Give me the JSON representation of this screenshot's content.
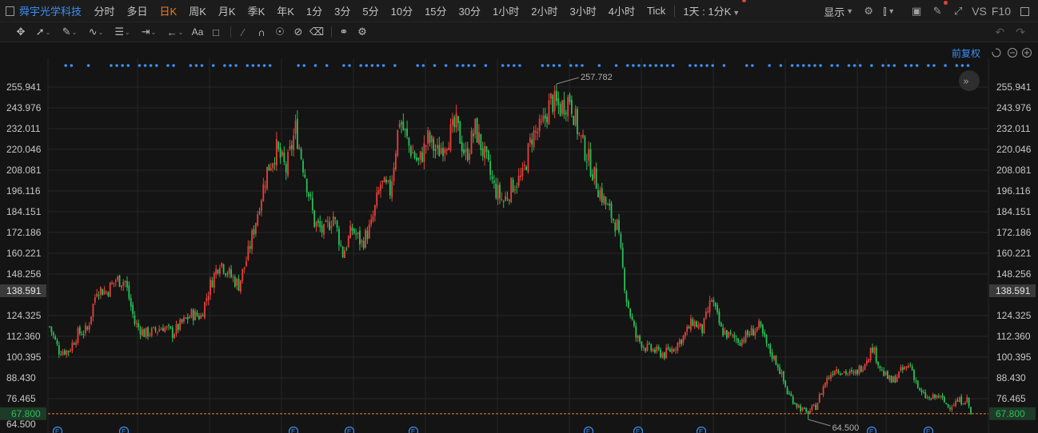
{
  "topbar": {
    "stock_name": "舜宇光学科技",
    "tabs": [
      {
        "label": "分时",
        "active": false
      },
      {
        "label": "多日",
        "active": false
      },
      {
        "label": "日K",
        "active": true
      },
      {
        "label": "周K",
        "active": false
      },
      {
        "label": "月K",
        "active": false
      },
      {
        "label": "季K",
        "active": false
      },
      {
        "label": "年K",
        "active": false
      },
      {
        "label": "1分",
        "active": false
      },
      {
        "label": "3分",
        "active": false
      },
      {
        "label": "5分",
        "active": false
      },
      {
        "label": "10分",
        "active": false
      },
      {
        "label": "15分",
        "active": false
      },
      {
        "label": "30分",
        "active": false
      },
      {
        "label": "1小时",
        "active": false
      },
      {
        "label": "2小时",
        "active": false
      },
      {
        "label": "3小时",
        "active": false
      },
      {
        "label": "4小时",
        "active": false
      },
      {
        "label": "Tick",
        "active": false
      }
    ],
    "period_select": "1天 : 1分K",
    "display_label": "显示",
    "vs_label": "VS",
    "f10_label": "F10"
  },
  "toolbar": {
    "icons": [
      "move-icon",
      "line-icon",
      "channel-icon",
      "wave-icon",
      "fib-icon",
      "range-icon",
      "arrow-icon",
      "text-icon",
      "note-icon",
      "eraser-icon",
      "magnet-icon",
      "eye-icon",
      "hide-icon",
      "trash-icon",
      "link-icon",
      "settings-icon"
    ]
  },
  "chart_data": {
    "type": "candlestick",
    "adjust_label": "前复权",
    "y_ticks": [
      255.941,
      243.976,
      232.011,
      220.046,
      208.081,
      196.116,
      184.151,
      172.186,
      160.221,
      148.256,
      124.325,
      112.36,
      100.395,
      88.43,
      76.465
    ],
    "ylim": [
      64.5,
      264
    ],
    "reference_price": {
      "label": "138.591",
      "value": 138.591
    },
    "last_price": {
      "label": "67.800",
      "value": 67.8
    },
    "high": {
      "label": "257.782",
      "value": 257.782
    },
    "low": {
      "label": "64.500",
      "value": 64.5
    },
    "bottom_tick_partial": "64.500",
    "event_marker_label": "E",
    "colors": {
      "up": "#e8403a",
      "down": "#2bbf56",
      "last": "#ee7d2a",
      "grid": "#262626",
      "accent": "#3d8ff5"
    },
    "anchors": [
      [
        0,
        118
      ],
      [
        5,
        104
      ],
      [
        10,
        104
      ],
      [
        15,
        114
      ],
      [
        20,
        116
      ],
      [
        25,
        140
      ],
      [
        30,
        138
      ],
      [
        35,
        145
      ],
      [
        40,
        144
      ],
      [
        45,
        120
      ],
      [
        50,
        114
      ],
      [
        55,
        115
      ],
      [
        60,
        118
      ],
      [
        65,
        114
      ],
      [
        70,
        120
      ],
      [
        75,
        125
      ],
      [
        80,
        124
      ],
      [
        85,
        142
      ],
      [
        90,
        156
      ],
      [
        95,
        148
      ],
      [
        100,
        142
      ],
      [
        105,
        160
      ],
      [
        110,
        184
      ],
      [
        115,
        208
      ],
      [
        120,
        220
      ],
      [
        125,
        208
      ],
      [
        130,
        232
      ],
      [
        135,
        206
      ],
      [
        140,
        178
      ],
      [
        145,
        172
      ],
      [
        150,
        182
      ],
      [
        155,
        160
      ],
      [
        160,
        174
      ],
      [
        165,
        166
      ],
      [
        170,
        176
      ],
      [
        175,
        200
      ],
      [
        180,
        196
      ],
      [
        185,
        238
      ],
      [
        190,
        222
      ],
      [
        195,
        212
      ],
      [
        200,
        226
      ],
      [
        205,
        218
      ],
      [
        210,
        226
      ],
      [
        215,
        234
      ],
      [
        220,
        216
      ],
      [
        225,
        232
      ],
      [
        230,
        216
      ],
      [
        235,
        198
      ],
      [
        240,
        190
      ],
      [
        245,
        200
      ],
      [
        250,
        204
      ],
      [
        255,
        228
      ],
      [
        260,
        232
      ],
      [
        265,
        248
      ],
      [
        270,
        244
      ],
      [
        275,
        250
      ],
      [
        280,
        228
      ],
      [
        285,
        214
      ],
      [
        290,
        198
      ],
      [
        295,
        186
      ],
      [
        300,
        176
      ],
      [
        305,
        134
      ],
      [
        310,
        112
      ],
      [
        315,
        106
      ],
      [
        320,
        104
      ],
      [
        325,
        102
      ],
      [
        330,
        106
      ],
      [
        335,
        112
      ],
      [
        340,
        121
      ],
      [
        345,
        116
      ],
      [
        350,
        134
      ],
      [
        355,
        116
      ],
      [
        360,
        112
      ],
      [
        365,
        110
      ],
      [
        370,
        114
      ],
      [
        375,
        118
      ],
      [
        380,
        105
      ],
      [
        385,
        96
      ],
      [
        390,
        80
      ],
      [
        395,
        73
      ],
      [
        400,
        68
      ],
      [
        405,
        72
      ],
      [
        410,
        86
      ],
      [
        415,
        94
      ],
      [
        420,
        92
      ],
      [
        425,
        90
      ],
      [
        430,
        96
      ],
      [
        435,
        106
      ],
      [
        440,
        92
      ],
      [
        445,
        86
      ],
      [
        450,
        92
      ],
      [
        455,
        96
      ],
      [
        460,
        80
      ],
      [
        465,
        76
      ],
      [
        470,
        78
      ],
      [
        475,
        72
      ],
      [
        480,
        75
      ],
      [
        485,
        76
      ],
      [
        487,
        67.8
      ]
    ]
  }
}
